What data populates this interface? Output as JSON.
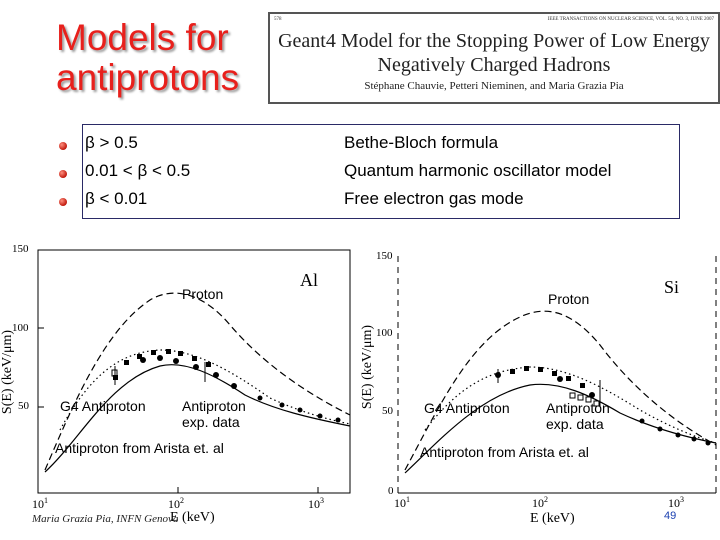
{
  "slide": {
    "title_line1": "Models for",
    "title_line2": "antiprotons",
    "footer": "Maria Grazia Pia, INFN Genova",
    "page_number": "49"
  },
  "paper": {
    "header_left": "578",
    "header_right": "IEEE TRANSACTIONS ON NUCLEAR SCIENCE, VOL. 54, NO. 3, JUNE 2007",
    "title_line1": "Geant4 Model for the Stopping Power of Low Energy",
    "title_line2": "Negatively Charged Hadrons",
    "authors": "Stéphane Chauvie, Petteri Nieminen, and Maria Grazia Pia"
  },
  "regimes": [
    {
      "condition": "β > 0.5",
      "model": "Bethe-Bloch formula"
    },
    {
      "condition": "0.01 < β < 0.5",
      "model": "Quantum harmonic oscillator model"
    },
    {
      "condition": "β < 0.01",
      "model": "Free electron gas mode"
    }
  ],
  "panels": [
    {
      "material": "Al",
      "y_label": "S(E)  (keV/μm)",
      "x_label": "E  (keV)",
      "y_ticks": [
        "50",
        "100",
        "150"
      ],
      "x_ticks": [
        "1",
        "2",
        "3"
      ],
      "proton_label": "Proton",
      "g4_label": "G4 Antiproton",
      "exp_label": "Antiproton exp. data",
      "arista_label": "Antiproton from Arista et. al"
    },
    {
      "material": "Si",
      "y_label": "S(E)  (keV/μm)",
      "x_label": "E  (keV)",
      "y_ticks": [
        "0",
        "50",
        "100",
        "150"
      ],
      "x_ticks": [
        "1",
        "2",
        "3"
      ],
      "proton_label": "Proton",
      "g4_label": "G4 Antiproton",
      "exp_label": "Antiproton exp. data",
      "arista_label": "Antiproton from Arista et. al"
    }
  ],
  "colors": {
    "title_red": "#e8201c",
    "bullet_red": "#c0180c",
    "box_border": "#2a2a66",
    "page_number_blue": "#1a3fb0"
  }
}
